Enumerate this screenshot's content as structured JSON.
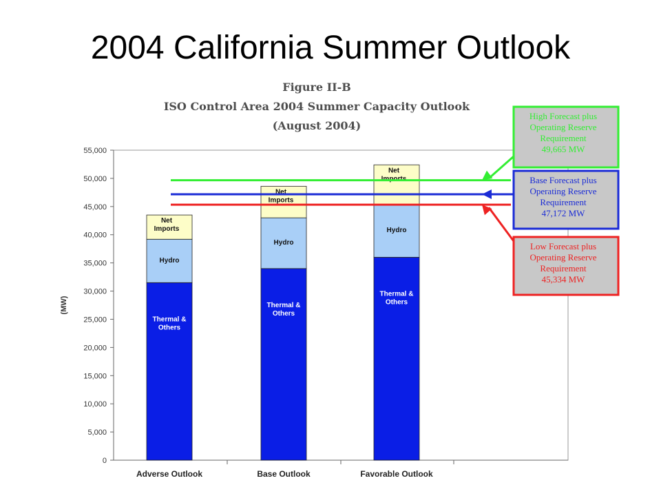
{
  "slide": {
    "title": "2004 California Summer Outlook"
  },
  "figure": {
    "title_line1": "Figure II-B",
    "title_line2": "ISO Control Area 2004 Summer Capacity Outlook",
    "title_line3": "(August 2004)"
  },
  "colors": {
    "thermal": "#0a1ee6",
    "hydro": "#a9cff7",
    "imports": "#fdfdc8",
    "high_line": "#33ee33",
    "base_line": "#1a2bd6",
    "low_line": "#ee2222",
    "callout_fill": "#c8c8c8"
  },
  "chart_data": {
    "type": "bar",
    "stacked": true,
    "title": "ISO Control Area 2004 Summer Capacity Outlook",
    "ylabel": "(MW)",
    "xlabel": "",
    "ylim": [
      0,
      55000
    ],
    "yticks": [
      0,
      5000,
      10000,
      15000,
      20000,
      25000,
      30000,
      35000,
      40000,
      45000,
      50000,
      55000
    ],
    "ytick_labels": [
      "0",
      "5,000",
      "10,000",
      "15,000",
      "20,000",
      "25,000",
      "30,000",
      "35,000",
      "40,000",
      "45,000",
      "50,000",
      "55,000"
    ],
    "categories": [
      "Adverse Outlook",
      "Base Outlook",
      "Favorable Outlook"
    ],
    "series": [
      {
        "name": "Thermal & Others",
        "values": [
          31500,
          34000,
          36000
        ]
      },
      {
        "name": "Hydro",
        "values": [
          7700,
          9000,
          9400
        ]
      },
      {
        "name": "Net Imports",
        "values": [
          4300,
          5600,
          7000
        ]
      }
    ],
    "segment_labels": {
      "thermal": [
        "Thermal &",
        "Others"
      ],
      "hydro": [
        "Hydro"
      ],
      "imports": [
        "Net",
        "Imports"
      ]
    },
    "reference_lines": [
      {
        "key": "high",
        "value": 49665,
        "lines": [
          "High Forecast plus",
          "Operating Reserve",
          "Requirement",
          "49,665 MW"
        ]
      },
      {
        "key": "base",
        "value": 47172,
        "lines": [
          "Base Forecast plus",
          "Operating Reserve",
          "Requirement",
          "47,172 MW"
        ]
      },
      {
        "key": "low",
        "value": 45334,
        "lines": [
          "Low Forecast plus",
          "Operating Reserve",
          "Requirement",
          "45,334 MW"
        ]
      }
    ],
    "grid": false,
    "legend": "none"
  }
}
